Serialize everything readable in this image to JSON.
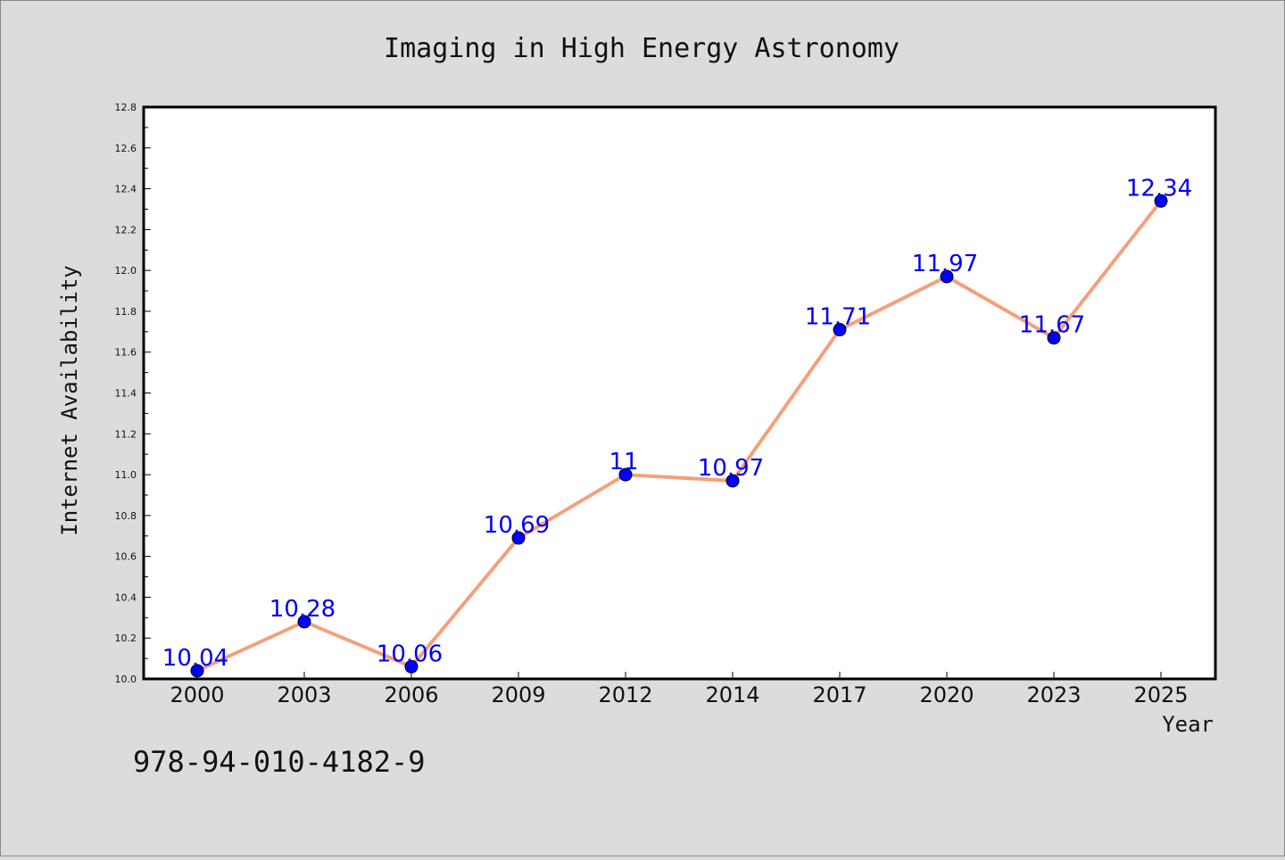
{
  "chart_data": {
    "type": "line",
    "title": "Imaging in High Energy Astronomy",
    "xlabel": "Year",
    "ylabel": "Internet Availability",
    "categories": [
      "2000",
      "2003",
      "2006",
      "2009",
      "2012",
      "2014",
      "2017",
      "2020",
      "2023",
      "2025"
    ],
    "series": [
      {
        "values": [
          10.04,
          10.28,
          10.06,
          10.69,
          11,
          10.97,
          11.71,
          11.97,
          11.67,
          12.34
        ],
        "data_labels": [
          "10.04",
          "10.28",
          "10.06",
          "10.69",
          "11",
          "10.97",
          "11.71",
          "11.97",
          "11.67",
          "12.34"
        ]
      }
    ],
    "ylim": [
      10.0,
      12.8
    ],
    "yticks": [
      "10.0",
      "10.2",
      "10.4",
      "10.6",
      "10.8",
      "11.0",
      "11.2",
      "11.4",
      "11.6",
      "11.8",
      "12.0",
      "12.2",
      "12.4",
      "12.6",
      "12.8"
    ],
    "grid": false,
    "legend": "none",
    "colors": {
      "line": "#f4a07c",
      "marker": "#0000ff",
      "label": "#0000ee",
      "background": "#dcdcdc",
      "plot_background": "#ffffff"
    }
  },
  "footer_text": "978-94-010-4182-9"
}
